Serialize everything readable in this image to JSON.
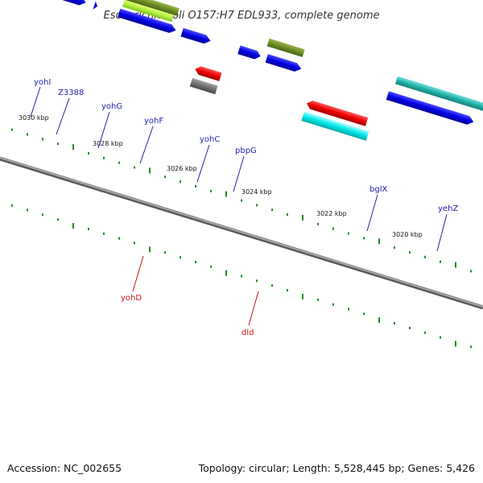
{
  "title": "Escherichia coli O157:H7 EDL933, complete genome",
  "footer": {
    "accession": "Accession: NC_002655",
    "summary": "Topology: circular; Length: 5,528,445 bp; Genes: 5,426"
  },
  "ticks": [
    "3030 kbp",
    "3028 kbp",
    "3026 kbp",
    "3024 kbp",
    "3022 kbp",
    "3020 kbp"
  ],
  "genes": {
    "yohI": "yohI",
    "Z3388": "Z3388",
    "yohG": "yohG",
    "yohF": "yohF",
    "yohC": "yohC",
    "pbpG": "pbpG",
    "bglX": "bglX",
    "yehZ": "yehZ",
    "yohD": "yohD",
    "dld": "dld"
  },
  "colors": {
    "backbone": "#888888",
    "forward_cds": "#0000ee",
    "reverse_cds": "#ee0000",
    "olive": "#6b8e23",
    "lime": "#9acd32",
    "pink": "#e87878",
    "cyan": "#00cccc",
    "teal": "#20b2aa",
    "steel": "#4682b4",
    "gray": "#707070",
    "tick_green": "#228b22"
  }
}
